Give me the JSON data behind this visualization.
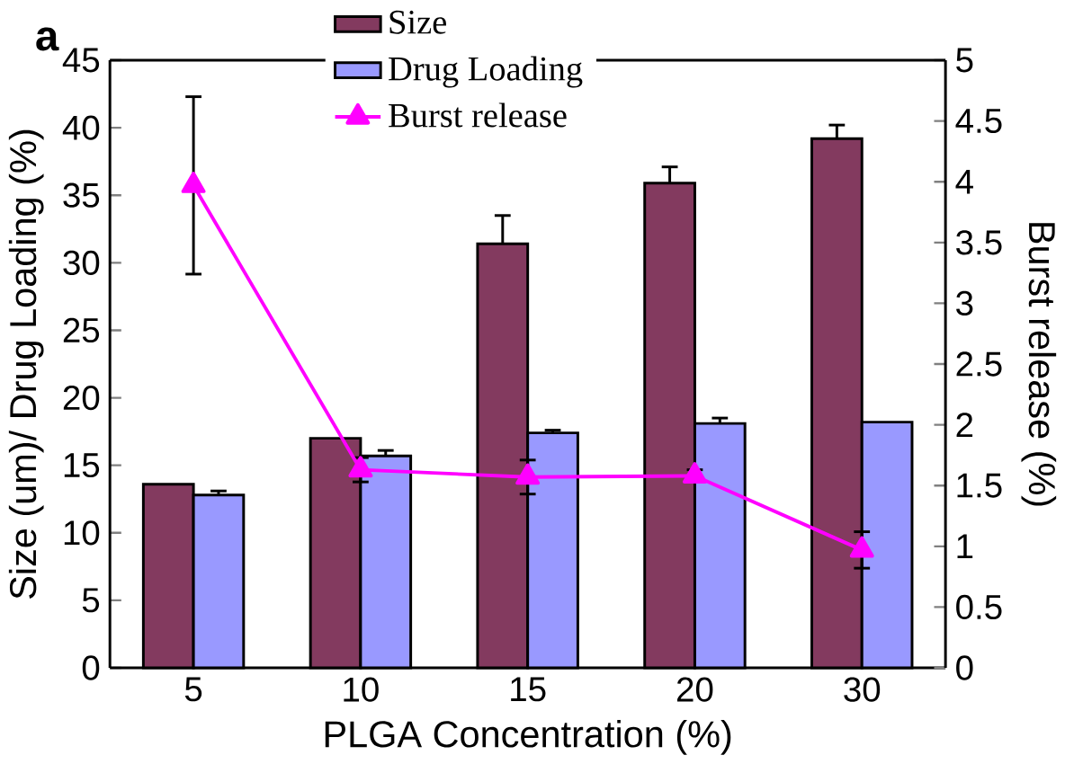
{
  "chart_data": {
    "type": "bar",
    "xlabel": "PLGA Concentration (%)",
    "ylabel": "Size (um)/ Drug Loading (%)",
    "y2label": "Burst release (%)",
    "categories": [
      "5",
      "10",
      "15",
      "20",
      "30"
    ],
    "series": [
      {
        "name": "Size",
        "color": "#833a5f",
        "values": [
          13.6,
          17.0,
          31.4,
          35.9,
          39.2
        ],
        "errors": [
          null,
          null,
          2.1,
          1.2,
          1.0
        ]
      },
      {
        "name": "Drug Loading",
        "color": "#9999ff",
        "values": [
          12.8,
          15.7,
          17.4,
          18.1,
          18.2
        ],
        "errors": [
          0.3,
          0.4,
          0.2,
          0.4,
          null
        ]
      },
      {
        "name": "Burst release",
        "type": "line",
        "axis": "y2",
        "color": "#ff00ff",
        "marker": "triangle",
        "values": [
          3.97,
          1.63,
          1.57,
          1.58,
          0.97
        ],
        "errors": [
          0.73,
          0.1,
          0.14,
          0.05,
          0.15
        ]
      }
    ],
    "ylim": [
      0,
      45
    ],
    "yticks": [
      0,
      5,
      10,
      15,
      20,
      25,
      30,
      35,
      40,
      45
    ],
    "y2lim": [
      0,
      5
    ],
    "y2ticks": [
      0,
      0.5,
      1,
      1.5,
      2,
      2.5,
      3,
      3.5,
      4,
      4.5,
      5
    ],
    "legend": "top",
    "annotations": [
      "a"
    ]
  }
}
